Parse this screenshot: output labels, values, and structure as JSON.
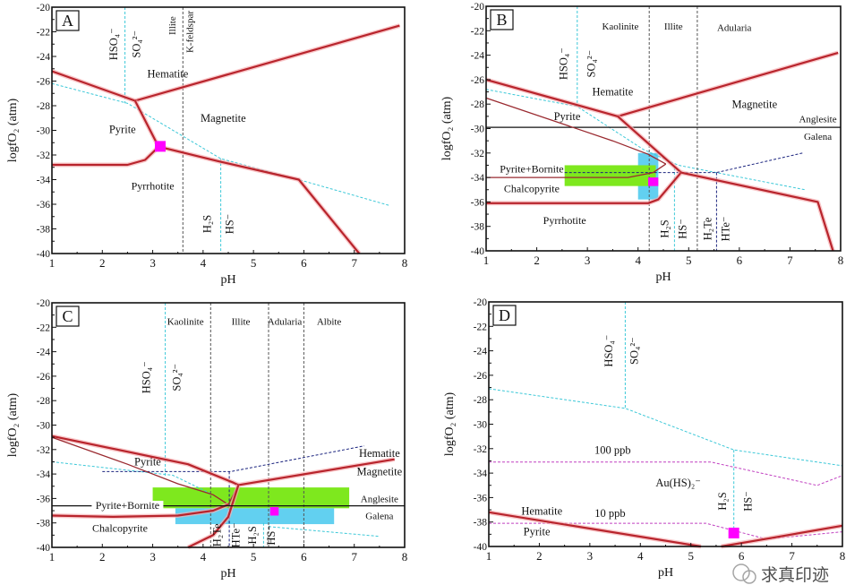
{
  "chart_data": [
    {
      "type": "line",
      "panel_label": "A",
      "xlabel": "pH",
      "ylabel": "logfO₂ (atm)",
      "xlim": [
        1,
        8
      ],
      "ylim": [
        -40,
        -20
      ],
      "xticks": [
        "1",
        "2",
        "3",
        "4",
        "5",
        "6",
        "7",
        "8"
      ],
      "yticks": [
        "-20",
        "-22",
        "-24",
        "-26",
        "-28",
        "-30",
        "-32",
        "-34",
        "-36",
        "-38",
        "-40"
      ],
      "grid": false,
      "lines": [
        {
          "style": "cyan",
          "points": [
            [
              1,
              -26.2
            ],
            [
              2.5,
              -27.8
            ],
            [
              4.35,
              -32.3
            ],
            [
              5.9,
              -34
            ],
            [
              7.7,
              -36.1
            ]
          ]
        },
        {
          "style": "cyan",
          "points": [
            [
              2.45,
              -20
            ],
            [
              2.45,
              -27.8
            ]
          ]
        },
        {
          "style": "cyan",
          "points": [
            [
              4.35,
              -32.3
            ],
            [
              4.35,
              -40
            ]
          ]
        },
        {
          "style": "gray",
          "points": [
            [
              3.6,
              -20
            ],
            [
              3.6,
              -40
            ]
          ]
        },
        {
          "style": "red",
          "points": [
            [
              1,
              -25.2
            ],
            [
              2.65,
              -27.6
            ]
          ]
        },
        {
          "style": "red",
          "points": [
            [
              2.65,
              -27.6
            ],
            [
              7.9,
              -21.5
            ]
          ]
        },
        {
          "style": "red",
          "points": [
            [
              2.65,
              -27.6
            ],
            [
              3.1,
              -31.2
            ]
          ]
        },
        {
          "style": "red",
          "points": [
            [
              1,
              -32.8
            ],
            [
              2.5,
              -32.8
            ],
            [
              2.85,
              -32.4
            ],
            [
              3.1,
              -31.4
            ]
          ]
        },
        {
          "style": "red",
          "points": [
            [
              3.1,
              -31.3
            ],
            [
              4.3,
              -32.5
            ],
            [
              5.9,
              -34
            ],
            [
              7.1,
              -40
            ]
          ]
        }
      ],
      "boxes": [],
      "markers": [
        {
          "color": "#ff00ff",
          "x": 3.15,
          "y": -31.3
        }
      ],
      "labels": [
        "HSO₄⁻",
        "SO₄²⁻",
        "Illite",
        "K-feldspar",
        "Hematite",
        "Magnetite",
        "Pyrite",
        "Pyrrhotite",
        "H₂S",
        "HS⁻"
      ]
    },
    {
      "type": "line",
      "panel_label": "B",
      "xlabel": "pH",
      "ylabel": "logfO₂ (atm)",
      "xlim": [
        1,
        8
      ],
      "ylim": [
        -40,
        -20
      ],
      "xticks": [
        "1",
        "2",
        "3",
        "4",
        "5",
        "6",
        "7",
        "8"
      ],
      "yticks": [
        "-20",
        "-22",
        "-24",
        "-26",
        "-28",
        "-30",
        "-32",
        "-34",
        "-36",
        "-38",
        "-40"
      ],
      "grid": false,
      "lines": [
        {
          "style": "cyan",
          "points": [
            [
              1,
              -26.8
            ],
            [
              2.8,
              -28.2
            ],
            [
              4.1,
              -31.7
            ],
            [
              4.8,
              -33
            ],
            [
              7.3,
              -35
            ]
          ]
        },
        {
          "style": "cyan",
          "points": [
            [
              2.8,
              -20
            ],
            [
              2.8,
              -28.2
            ]
          ]
        },
        {
          "style": "cyan",
          "points": [
            [
              4.72,
              -33.2
            ],
            [
              4.72,
              -40
            ]
          ]
        },
        {
          "style": "gray",
          "points": [
            [
              4.22,
              -20
            ],
            [
              4.22,
              -40
            ]
          ]
        },
        {
          "style": "gray",
          "points": [
            [
              5.17,
              -20
            ],
            [
              5.17,
              -40
            ]
          ]
        },
        {
          "style": "black",
          "points": [
            [
              1,
              -29.9
            ],
            [
              8,
              -29.9
            ]
          ]
        },
        {
          "style": "navy",
          "points": [
            [
              2.55,
              -33.6
            ],
            [
              5.55,
              -33.6
            ],
            [
              7.25,
              -32
            ]
          ]
        },
        {
          "style": "navy",
          "points": [
            [
              5.55,
              -33.6
            ],
            [
              5.55,
              -40
            ]
          ]
        },
        {
          "style": "red",
          "points": [
            [
              1,
              -26
            ],
            [
              3.6,
              -29
            ]
          ]
        },
        {
          "style": "red",
          "points": [
            [
              3.6,
              -29
            ],
            [
              7.95,
              -23.8
            ]
          ]
        },
        {
          "style": "red",
          "points": [
            [
              3.6,
              -29
            ],
            [
              4.85,
              -33.6
            ]
          ]
        },
        {
          "style": "redthin",
          "points": [
            [
              1,
              -27.5
            ],
            [
              3.5,
              -31
            ],
            [
              4.2,
              -32.1
            ],
            [
              4.55,
              -32.9
            ]
          ]
        },
        {
          "style": "redthin",
          "points": [
            [
              1,
              -34
            ],
            [
              3.8,
              -34
            ],
            [
              4.3,
              -33.6
            ],
            [
              4.55,
              -32.9
            ]
          ]
        },
        {
          "style": "red",
          "points": [
            [
              1,
              -36.1
            ],
            [
              4.2,
              -36.1
            ],
            [
              4.4,
              -35.8
            ],
            [
              4.85,
              -33.6
            ]
          ]
        },
        {
          "style": "red",
          "points": [
            [
              4.85,
              -33.6
            ],
            [
              7.55,
              -36
            ],
            [
              7.85,
              -40
            ]
          ]
        }
      ],
      "boxes": [
        {
          "color": "#62d0f0",
          "x": [
            4.0,
            4.4
          ],
          "y": [
            -35.8,
            -32
          ]
        },
        {
          "color": "#7ee81e",
          "x": [
            2.55,
            4.35
          ],
          "y": [
            -34.7,
            -33
          ]
        }
      ],
      "markers": [
        {
          "color": "#ff00ff",
          "x": [
            4.2,
            4.4
          ],
          "y": [
            -34.7,
            -34.0
          ]
        }
      ],
      "labels": [
        "Kaolinite",
        "Illite",
        "Adularia",
        "HSO₄⁻",
        "SO₄²⁻",
        "Hematite",
        "Magnetite",
        "Pyrite",
        "Anglesite",
        "Galena",
        "Pyrite+Bornite",
        "Chalcopyrite",
        "Pyrrhotite",
        "H₂S",
        "HS⁻",
        "H₂Te",
        "HTe⁻"
      ]
    },
    {
      "type": "line",
      "panel_label": "C",
      "xlabel": "pH",
      "ylabel": "logfO₂ (atm)",
      "xlim": [
        1,
        8
      ],
      "ylim": [
        -40,
        -20
      ],
      "xticks": [
        "1",
        "2",
        "3",
        "4",
        "5",
        "6",
        "7",
        "8"
      ],
      "yticks": [
        "-20",
        "-22",
        "-24",
        "-26",
        "-28",
        "-30",
        "-32",
        "-34",
        "-36",
        "-38",
        "-40"
      ],
      "grid": false,
      "lines": [
        {
          "style": "cyan",
          "points": [
            [
              1,
              -33
            ],
            [
              3.4,
              -34.1
            ],
            [
              4.2,
              -35.7
            ]
          ]
        },
        {
          "style": "cyan",
          "points": [
            [
              5.3,
              -38.3
            ],
            [
              7.5,
              -39.1
            ]
          ]
        },
        {
          "style": "cyan",
          "points": [
            [
              3.25,
              -20
            ],
            [
              3.25,
              -34.2
            ]
          ]
        },
        {
          "style": "cyan",
          "points": [
            [
              5.2,
              -38
            ],
            [
              5.2,
              -40
            ]
          ]
        },
        {
          "style": "gray",
          "points": [
            [
              4.15,
              -20
            ],
            [
              4.15,
              -40
            ]
          ]
        },
        {
          "style": "gray",
          "points": [
            [
              5.3,
              -20
            ],
            [
              5.3,
              -40
            ]
          ]
        },
        {
          "style": "gray",
          "points": [
            [
              6.0,
              -20
            ],
            [
              6.0,
              -40
            ]
          ]
        },
        {
          "style": "navy",
          "points": [
            [
              2,
              -33.8
            ],
            [
              4.55,
              -33.8
            ],
            [
              7.2,
              -31.7
            ]
          ]
        },
        {
          "style": "navy",
          "points": [
            [
              4.52,
              -33.8
            ],
            [
              4.52,
              -40
            ]
          ]
        },
        {
          "style": "red",
          "points": [
            [
              1,
              -30.9
            ],
            [
              3.7,
              -33.2
            ],
            [
              4.6,
              -34.7
            ],
            [
              4.7,
              -34.9
            ]
          ]
        },
        {
          "style": "red",
          "points": [
            [
              4.7,
              -34.9
            ],
            [
              7.8,
              -32.8
            ]
          ]
        },
        {
          "style": "redthin",
          "points": [
            [
              1,
              -31
            ],
            [
              2.5,
              -33.2
            ],
            [
              3.5,
              -34.8
            ],
            [
              4.2,
              -35.7
            ],
            [
              4.5,
              -36.5
            ]
          ]
        },
        {
          "style": "redthin",
          "points": [
            [
              4.5,
              -36.5
            ],
            [
              4.7,
              -34.9
            ]
          ]
        },
        {
          "style": "red",
          "points": [
            [
              1,
              -37.4
            ],
            [
              2.2,
              -37.5
            ],
            [
              3.5,
              -37.4
            ],
            [
              4.2,
              -37
            ],
            [
              4.5,
              -36.5
            ]
          ]
        },
        {
          "style": "red",
          "points": [
            [
              3.7,
              -40
            ],
            [
              4.2,
              -39
            ],
            [
              4.5,
              -37.5
            ],
            [
              4.7,
              -34.9
            ]
          ]
        }
      ],
      "boxes": [
        {
          "color": "#7ee81e",
          "x": [
            3.0,
            6.9
          ],
          "y": [
            -36.8,
            -35.1
          ]
        },
        {
          "color": "#62d0f0",
          "x": [
            3.45,
            6.6
          ],
          "y": [
            -38.1,
            -36.8
          ]
        }
      ],
      "extra_lines": [
        {
          "style": "black",
          "points": [
            [
              1,
              -36.6
            ],
            [
              8,
              -36.6
            ]
          ]
        }
      ],
      "markers": [
        {
          "color": "#ff00ff",
          "x": [
            5.33,
            5.5
          ],
          "y": [
            -37.4,
            -36.7
          ]
        }
      ],
      "labels": [
        "Kaolinite",
        "Illite",
        "Adularia",
        "Albite",
        "HSO₄⁻",
        "SO₄²⁻",
        "Hematite",
        "Magnetite",
        "Pyrite",
        "Anglesite",
        "Galena",
        "Pyrite+Bornite",
        "Chalcopyrite",
        "H₂Te",
        "HTe⁻",
        "H₂S",
        "HS⁻"
      ]
    },
    {
      "type": "line",
      "panel_label": "D",
      "xlabel": "pH",
      "ylabel": "logfO₂ (atm)",
      "xlim": [
        1,
        8
      ],
      "ylim": [
        -40,
        -20
      ],
      "xticks": [
        "1",
        "2",
        "3",
        "4",
        "5",
        "6",
        "7",
        "8"
      ],
      "yticks": [
        "-20",
        "-22",
        "-24",
        "-26",
        "-28",
        "-30",
        "-32",
        "-34",
        "-36",
        "-38",
        "-40"
      ],
      "grid": false,
      "lines": [
        {
          "style": "cyan",
          "points": [
            [
              1,
              -27.1
            ],
            [
              3.7,
              -28.7
            ],
            [
              5.85,
              -32.1
            ],
            [
              8,
              -33.4
            ]
          ]
        },
        {
          "style": "cyan",
          "points": [
            [
              3.7,
              -20
            ],
            [
              3.7,
              -28.7
            ]
          ]
        },
        {
          "style": "cyan",
          "points": [
            [
              5.85,
              -32.1
            ],
            [
              5.85,
              -38.7
            ]
          ]
        },
        {
          "style": "magenta",
          "points": [
            [
              1,
              -33.1
            ],
            [
              5.4,
              -33.1
            ],
            [
              7.5,
              -35
            ],
            [
              8,
              -34.2
            ]
          ]
        },
        {
          "style": "magenta",
          "points": [
            [
              1,
              -38.1
            ],
            [
              5.3,
              -38.1
            ],
            [
              6.5,
              -39.4
            ],
            [
              8,
              -38.8
            ]
          ]
        },
        {
          "style": "red",
          "points": [
            [
              1,
              -37.2
            ],
            [
              5.2,
              -40
            ]
          ]
        },
        {
          "style": "red",
          "points": [
            [
              5.6,
              -40
            ],
            [
              6.6,
              -39.3
            ],
            [
              8,
              -38.3
            ]
          ]
        }
      ],
      "boxes": [],
      "markers": [
        {
          "color": "#ff00ff",
          "x": 5.85,
          "y": -38.9
        }
      ],
      "labels": [
        "HSO₄⁻",
        "SO₄²⁻",
        "100 ppb",
        "Au(HS)₂⁻",
        "Hematite",
        "10 ppb",
        "Pyrite",
        "H₂S",
        "HS⁻"
      ]
    }
  ],
  "watermark": "求真印迹",
  "colors": {
    "phase_boundary": "#b8242c",
    "sulfur_species": "#3cc8d8",
    "silicate": "#555555",
    "tellurium": "#1a237e",
    "gold_solubility": "#c040c0",
    "anglesite_galena": "#111111",
    "green_field": "#7ee81e",
    "blue_field": "#62d0f0",
    "sample": "#ff00ff"
  }
}
